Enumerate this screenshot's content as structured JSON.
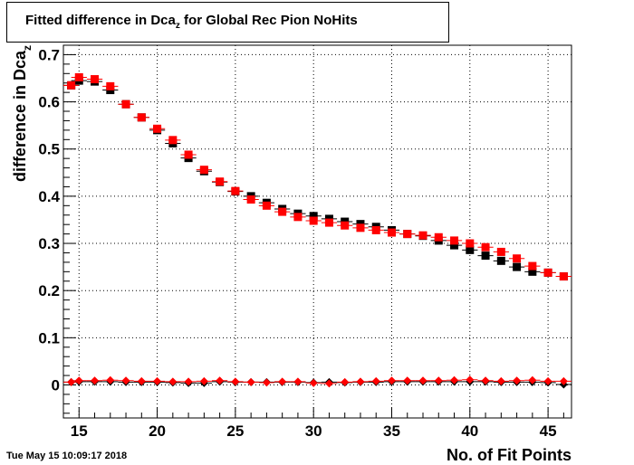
{
  "title": {
    "main": "Fitted difference in Dca",
    "subscript": "z",
    "suffix": " for Global Rec Pion NoHits"
  },
  "timestamp": "Tue May 15 10:09:17 2018",
  "chart_data": {
    "type": "scatter",
    "xlabel": "No. of Fit Points",
    "ylabel_main": "difference in Dca",
    "ylabel_sub": "z",
    "xlim": [
      14,
      46.5
    ],
    "ylim": [
      -0.07,
      0.72
    ],
    "xticks": [
      15,
      20,
      25,
      30,
      35,
      40,
      45
    ],
    "yticks": [
      0,
      0.1,
      0.2,
      0.3,
      0.4,
      0.5,
      0.6,
      0.7
    ],
    "grid": true,
    "x": [
      14.5,
      15,
      16,
      17,
      18,
      19,
      20,
      21,
      22,
      23,
      24,
      25,
      26,
      27,
      28,
      29,
      30,
      31,
      32,
      33,
      34,
      35,
      36,
      37,
      38,
      39,
      40,
      41,
      42,
      43,
      44,
      45,
      46
    ],
    "series": [
      {
        "marker": "square",
        "color": "#000000",
        "values": [
          0.635,
          0.645,
          0.643,
          0.625,
          0.595,
          0.567,
          0.54,
          0.512,
          0.481,
          0.453,
          0.43,
          0.41,
          0.4,
          0.386,
          0.373,
          0.363,
          0.358,
          0.352,
          0.346,
          0.341,
          0.335,
          0.328,
          0.32,
          0.316,
          0.306,
          0.296,
          0.286,
          0.274,
          0.263,
          0.25,
          0.24,
          0.238,
          0.23
        ]
      },
      {
        "marker": "square",
        "color": "#ff0000",
        "values": [
          0.635,
          0.652,
          0.648,
          0.633,
          0.595,
          0.567,
          0.543,
          0.519,
          0.488,
          0.456,
          0.431,
          0.411,
          0.393,
          0.38,
          0.367,
          0.356,
          0.348,
          0.344,
          0.338,
          0.333,
          0.328,
          0.323,
          0.32,
          0.317,
          0.313,
          0.306,
          0.3,
          0.292,
          0.282,
          0.268,
          0.252,
          0.238,
          0.23
        ]
      },
      {
        "marker": "diamond",
        "color": "#000000",
        "values": [
          0.006,
          0.007,
          0.007,
          0.007,
          0.006,
          0.006,
          0.006,
          0.005,
          0.004,
          0.004,
          0.007,
          0.006,
          0.006,
          0.006,
          0.006,
          0.006,
          0.005,
          0.006,
          0.005,
          0.006,
          0.006,
          0.007,
          0.007,
          0.007,
          0.007,
          0.007,
          0.007,
          0.007,
          0.006,
          0.006,
          0.006,
          0.005,
          0.001
        ]
      },
      {
        "marker": "diamond",
        "color": "#ff0000",
        "values": [
          0.006,
          0.009,
          0.009,
          0.01,
          0.009,
          0.008,
          0.008,
          0.007,
          0.007,
          0.008,
          0.009,
          0.007,
          0.006,
          0.005,
          0.007,
          0.007,
          0.004,
          0.003,
          0.006,
          0.007,
          0.008,
          0.009,
          0.009,
          0.009,
          0.009,
          0.01,
          0.011,
          0.009,
          0.008,
          0.009,
          0.01,
          0.008,
          0.008
        ]
      }
    ]
  }
}
